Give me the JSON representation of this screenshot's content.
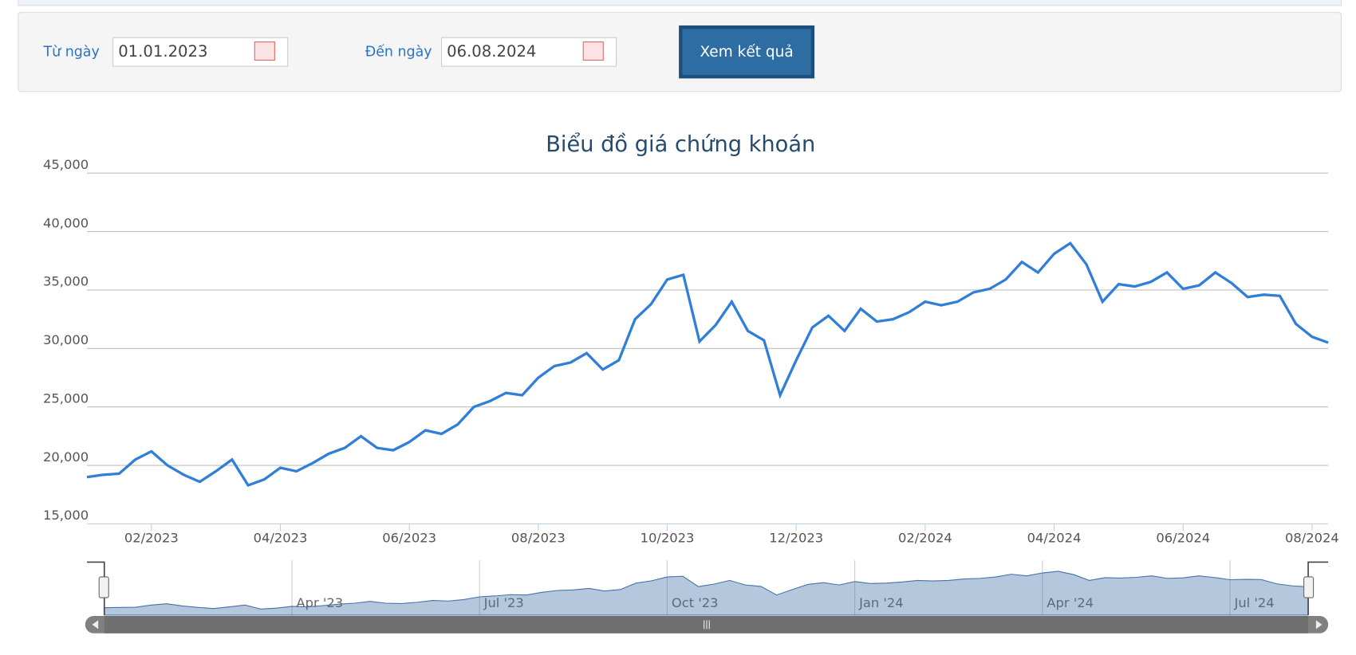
{
  "form": {
    "from_label": "Từ ngày",
    "from_value": "01.01.2023",
    "to_label": "Đến ngày",
    "to_value": "06.08.2024",
    "button": "Xem kết quả"
  },
  "chart_data": {
    "type": "line",
    "title": "Biểu đồ giá chứng khoán",
    "categories": [
      null,
      null,
      null,
      null,
      "02/2023",
      null,
      null,
      null,
      null,
      null,
      null,
      null,
      "04/2023",
      null,
      null,
      null,
      null,
      null,
      null,
      null,
      "06/2023",
      null,
      null,
      null,
      null,
      null,
      null,
      null,
      "08/2023",
      null,
      null,
      null,
      null,
      null,
      null,
      null,
      "10/2023",
      null,
      null,
      null,
      null,
      null,
      null,
      null,
      "12/2023",
      null,
      null,
      null,
      null,
      null,
      null,
      null,
      "02/2024",
      null,
      null,
      null,
      null,
      null,
      null,
      null,
      "04/2024",
      null,
      null,
      null,
      null,
      null,
      null,
      null,
      "06/2024",
      null,
      null,
      null,
      null,
      null,
      null,
      null,
      "08/2024",
      null
    ],
    "navigator_categories": [
      null,
      null,
      null,
      null,
      null,
      null,
      null,
      null,
      null,
      null,
      null,
      null,
      "Apr '23",
      null,
      null,
      null,
      null,
      null,
      null,
      null,
      null,
      null,
      null,
      null,
      "Jul '23",
      null,
      null,
      null,
      null,
      null,
      null,
      null,
      null,
      null,
      null,
      null,
      "Oct '23",
      null,
      null,
      null,
      null,
      null,
      null,
      null,
      null,
      null,
      null,
      null,
      "Jan '24",
      null,
      null,
      null,
      null,
      null,
      null,
      null,
      null,
      null,
      null,
      null,
      "Apr '24",
      null,
      null,
      null,
      null,
      null,
      null,
      null,
      null,
      null,
      null,
      null,
      "Jul '24",
      null,
      null,
      null,
      null,
      null
    ],
    "series": [
      {
        "color": "#2f7ed8",
        "values": [
          19000,
          19200,
          19300,
          20500,
          21200,
          20000,
          19200,
          18600,
          19500,
          20500,
          18300,
          18800,
          19800,
          19500,
          20200,
          21000,
          21500,
          22500,
          21500,
          21300,
          22000,
          23000,
          22700,
          23500,
          25000,
          25500,
          26200,
          26000,
          27500,
          28500,
          28800,
          29600,
          28200,
          29000,
          32500,
          33800,
          35900,
          36300,
          30600,
          32000,
          34000,
          31500,
          30700,
          26000,
          29000,
          31800,
          32800,
          31500,
          33400,
          32300,
          32500,
          33100,
          34000,
          33700,
          34000,
          34800,
          35100,
          35900,
          37400,
          36500,
          38100,
          39000,
          37200,
          34000,
          35500,
          35300,
          35700,
          36500,
          35100,
          35400,
          36500,
          35600,
          34400,
          34600,
          34500,
          32100,
          31000,
          30500
        ]
      }
    ],
    "ylim": [
      15000,
      45000
    ],
    "yticks": [
      {
        "value": 15000,
        "label": "15,000"
      },
      {
        "value": 20000,
        "label": "20,000"
      },
      {
        "value": 25000,
        "label": "25,000"
      },
      {
        "value": 30000,
        "label": "30,000"
      },
      {
        "value": 35000,
        "label": "35,000"
      },
      {
        "value": 40000,
        "label": "40,000"
      },
      {
        "value": 45000,
        "label": "45,000"
      }
    ],
    "grid": true
  }
}
